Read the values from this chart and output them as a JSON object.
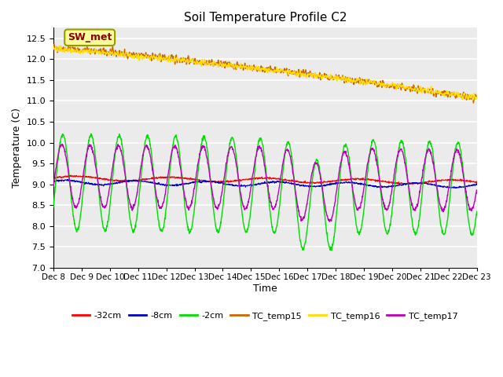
{
  "title": "Soil Temperature Profile C2",
  "xlabel": "Time",
  "ylabel": "Temperature (C)",
  "ylim": [
    7.0,
    12.75
  ],
  "xlim": [
    0,
    15
  ],
  "xtick_labels": [
    "Dec 8",
    "Dec 9",
    "Dec 10",
    "Dec 11",
    "Dec 12",
    "Dec 13",
    "Dec 14",
    "Dec 15",
    "Dec 16",
    "Dec 17",
    "Dec 18",
    "Dec 19",
    "Dec 20",
    "Dec 21",
    "Dec 22",
    "Dec 23"
  ],
  "background_color": "#ebebeb",
  "grid_color": "#ffffff",
  "series": {
    "neg32cm": {
      "color": "#ff0000",
      "label": "-32cm"
    },
    "neg8cm": {
      "color": "#0000cc",
      "label": "-8cm"
    },
    "neg2cm": {
      "color": "#00dd00",
      "label": "-2cm"
    },
    "tc15": {
      "color": "#cc6600",
      "label": "TC_temp15"
    },
    "tc16": {
      "color": "#ffdd00",
      "label": "TC_temp16"
    },
    "tc17": {
      "color": "#bb00bb",
      "label": "TC_temp17"
    }
  },
  "sw_met_box": {
    "text": "SW_met",
    "text_color": "#880000",
    "bg_color": "#ffff99",
    "edge_color": "#999900"
  },
  "n_points": 1500
}
